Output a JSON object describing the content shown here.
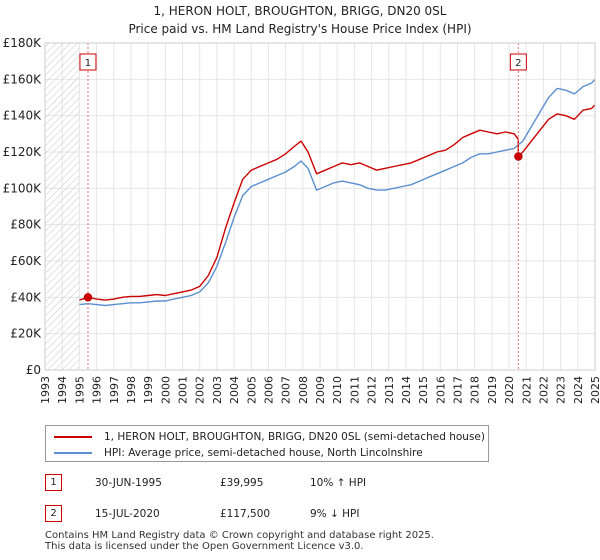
{
  "chart_data": {
    "type": "line",
    "title": "1, HERON HOLT, BROUGHTON, BRIGG, DN20 0SL",
    "subtitle": "Price paid vs. HM Land Registry's House Price Index (HPI)",
    "xlabel": "",
    "ylabel": "",
    "xlim": [
      1993,
      2025
    ],
    "ylim": [
      0,
      180000
    ],
    "x_ticks": [
      1993,
      1994,
      1995,
      1996,
      1997,
      1998,
      1999,
      2000,
      2001,
      2002,
      2003,
      2004,
      2005,
      2006,
      2007,
      2008,
      2009,
      2010,
      2011,
      2012,
      2013,
      2014,
      2015,
      2016,
      2017,
      2018,
      2019,
      2020,
      2021,
      2022,
      2023,
      2024,
      2025
    ],
    "y_ticks": [
      0,
      20000,
      40000,
      60000,
      80000,
      100000,
      120000,
      140000,
      160000,
      180000
    ],
    "y_tick_labels": [
      "£0",
      "£20K",
      "£40K",
      "£60K",
      "£80K",
      "£100K",
      "£120K",
      "£140K",
      "£160K",
      "£180K"
    ],
    "grid": true,
    "hatched_region": [
      1993,
      1995
    ],
    "series": [
      {
        "name": "1, HERON HOLT, BROUGHTON, BRIGG, DN20 0SL (semi-detached house)",
        "color": "#cc0000",
        "x": [
          1995.0,
          1995.5,
          1996.0,
          1996.5,
          1997.0,
          1997.5,
          1998.0,
          1998.5,
          1999.0,
          1999.5,
          2000.0,
          2000.5,
          2001.0,
          2001.5,
          2002.0,
          2002.5,
          2003.0,
          2003.5,
          2004.0,
          2004.5,
          2005.0,
          2005.5,
          2006.0,
          2006.5,
          2007.0,
          2007.5,
          2007.9,
          2008.3,
          2008.8,
          2009.3,
          2009.8,
          2010.3,
          2010.8,
          2011.3,
          2011.8,
          2012.3,
          2012.8,
          2013.3,
          2013.8,
          2014.3,
          2014.8,
          2015.3,
          2015.8,
          2016.3,
          2016.8,
          2017.3,
          2017.8,
          2018.3,
          2018.8,
          2019.3,
          2019.8,
          2020.3,
          2020.54,
          2020.54,
          2020.8,
          2021.3,
          2021.8,
          2022.3,
          2022.8,
          2023.3,
          2023.8,
          2024.3,
          2024.8,
          2025.0
        ],
        "values": [
          38500,
          39995,
          39000,
          38500,
          39000,
          40000,
          40500,
          40500,
          41000,
          41500,
          41000,
          42000,
          43000,
          44000,
          46000,
          52000,
          62000,
          78000,
          92000,
          105000,
          110000,
          112000,
          114000,
          116000,
          119000,
          123000,
          126000,
          120000,
          108000,
          110000,
          112000,
          114000,
          113000,
          114000,
          112000,
          110000,
          111000,
          112000,
          113000,
          114000,
          116000,
          118000,
          120000,
          121000,
          124000,
          128000,
          130000,
          132000,
          131000,
          130000,
          131000,
          130000,
          127000,
          117500,
          120000,
          126000,
          132000,
          138000,
          141000,
          140000,
          138000,
          143000,
          144000,
          146000
        ]
      },
      {
        "name": "HPI: Average price, semi-detached house, North Lincolnshire",
        "color": "#5b8fd0",
        "x": [
          1995.0,
          1995.5,
          1996.0,
          1996.5,
          1997.0,
          1997.5,
          1998.0,
          1998.5,
          1999.0,
          1999.5,
          2000.0,
          2000.5,
          2001.0,
          2001.5,
          2002.0,
          2002.5,
          2003.0,
          2003.5,
          2004.0,
          2004.5,
          2005.0,
          2005.5,
          2006.0,
          2006.5,
          2007.0,
          2007.5,
          2007.9,
          2008.3,
          2008.8,
          2009.3,
          2009.8,
          2010.3,
          2010.8,
          2011.3,
          2011.8,
          2012.3,
          2012.8,
          2013.3,
          2013.8,
          2014.3,
          2014.8,
          2015.3,
          2015.8,
          2016.3,
          2016.8,
          2017.3,
          2017.8,
          2018.3,
          2018.8,
          2019.3,
          2019.8,
          2020.3,
          2020.8,
          2021.3,
          2021.8,
          2022.3,
          2022.8,
          2023.3,
          2023.8,
          2024.3,
          2024.8,
          2025.0
        ],
        "values": [
          36000,
          36500,
          36000,
          35500,
          36000,
          36500,
          37000,
          37000,
          37500,
          38000,
          38000,
          39000,
          40000,
          41000,
          43000,
          48000,
          57000,
          70000,
          84000,
          96000,
          101000,
          103000,
          105000,
          107000,
          109000,
          112000,
          115000,
          111000,
          99000,
          101000,
          103000,
          104000,
          103000,
          102000,
          100000,
          99000,
          99000,
          100000,
          101000,
          102000,
          104000,
          106000,
          108000,
          110000,
          112000,
          114000,
          117000,
          119000,
          119000,
          120000,
          121000,
          122000,
          126000,
          134000,
          142000,
          150000,
          155000,
          154000,
          152000,
          156000,
          158000,
          160000
        ]
      }
    ],
    "sales": [
      {
        "num": "1",
        "x": 1995.5,
        "value": 39995
      },
      {
        "num": "2",
        "x": 2020.54,
        "value": 117500
      }
    ]
  },
  "legend": {
    "property": "1, HERON HOLT, BROUGHTON, BRIGG, DN20 0SL (semi-detached house)",
    "hpi": "HPI: Average price, semi-detached house, North Lincolnshire"
  },
  "sales_table": [
    {
      "num": "1",
      "date": "30-JUN-1995",
      "price": "£39,995",
      "delta": "10% ↑ HPI"
    },
    {
      "num": "2",
      "date": "15-JUL-2020",
      "price": "£117,500",
      "delta": "9% ↓ HPI"
    }
  ],
  "footer": {
    "line1": "Contains HM Land Registry data © Crown copyright and database right 2025.",
    "line2": "This data is licensed under the Open Government Licence v3.0."
  }
}
